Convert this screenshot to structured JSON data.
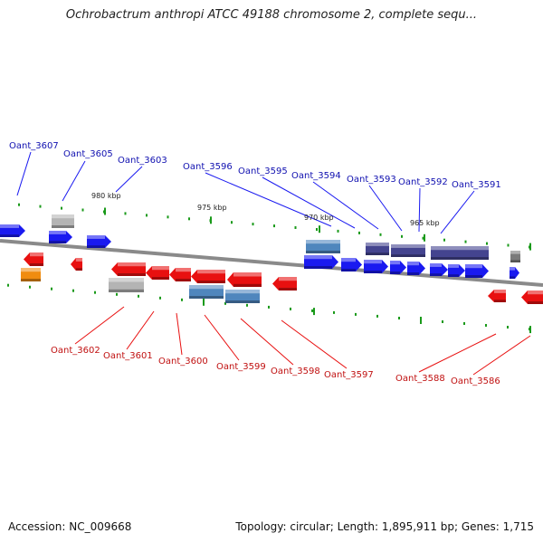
{
  "title": "Ochrobactrum anthropi ATCC 49188 chromosome 2, complete sequ...",
  "footer": {
    "accession": "Accession: NC_009668",
    "summary": "Topology: circular; Length: 1,895,911 bp; Genes: 1,715"
  },
  "colors": {
    "forward": "#1a1af0",
    "reverse": "#e81010",
    "forward_label": "#1010b0",
    "reverse_label": "#c01010",
    "steel": "#4f86bd",
    "dark_purple": "#44448f",
    "gray": "#b4b4b4",
    "orange": "#f08c10",
    "dark_gray": "#7a7a7a",
    "backbone": "#8a8a8a",
    "tick": "#1a9a1a"
  },
  "position_labels": [
    "980 kbp",
    "975 kbp",
    "970 kbp",
    "965 kbp"
  ],
  "forward_genes": [
    "Oant_3607",
    "Oant_3605",
    "Oant_3603",
    "Oant_3596",
    "Oant_3595",
    "Oant_3594",
    "Oant_3593",
    "Oant_3592",
    "Oant_3591"
  ],
  "reverse_genes": [
    "Oant_3602",
    "Oant_3601",
    "Oant_3600",
    "Oant_3599",
    "Oant_3598",
    "Oant_3597",
    "Oant_3588",
    "Oant_3586"
  ]
}
